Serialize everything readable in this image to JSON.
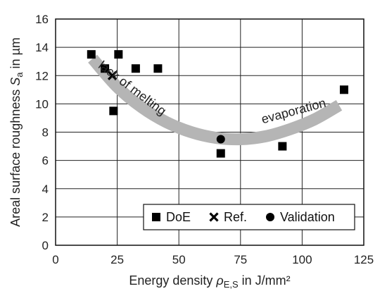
{
  "chart_data": {
    "type": "scatter",
    "xlabel_parts": {
      "prefix": "Energy density ",
      "symbol": "ρ",
      "sub": "E,S",
      "suffix": " in J/mm²"
    },
    "ylabel_parts": {
      "prefix": "Areal surface roughness ",
      "symbol": "S",
      "sub": "a",
      "suffix": " in µm"
    },
    "xlim": [
      0,
      125
    ],
    "ylim": [
      0,
      16
    ],
    "xticks": [
      0,
      25,
      50,
      75,
      100,
      125
    ],
    "yticks": [
      0,
      2,
      4,
      6,
      8,
      10,
      12,
      14,
      16
    ],
    "grid": true,
    "legend_position": "bottom-right",
    "series": [
      {
        "name": "DoE",
        "marker": "square",
        "points": [
          [
            14.5,
            13.5
          ],
          [
            20,
            12.5
          ],
          [
            23.5,
            9.5
          ],
          [
            25.5,
            13.5
          ],
          [
            32.5,
            12.5
          ],
          [
            41.5,
            12.5
          ],
          [
            67,
            6.5
          ],
          [
            92,
            7.0
          ],
          [
            117,
            11.0
          ]
        ]
      },
      {
        "name": "Ref.",
        "marker": "cross",
        "points": [
          [
            23,
            12.0
          ]
        ]
      },
      {
        "name": "Validation",
        "marker": "circle",
        "points": [
          [
            67,
            7.5
          ]
        ]
      }
    ],
    "trend_curve": {
      "color": "#b5b5b5",
      "points": [
        [
          15,
          13.2
        ],
        [
          25,
          11.2
        ],
        [
          35,
          9.75
        ],
        [
          45,
          8.7
        ],
        [
          55,
          8.0
        ],
        [
          65,
          7.6
        ],
        [
          75,
          7.5
        ],
        [
          85,
          7.7
        ],
        [
          95,
          8.2
        ],
        [
          105,
          8.9
        ],
        [
          115,
          9.9
        ]
      ]
    },
    "annotations": [
      {
        "text": "lack of melting",
        "x": 17,
        "y": 12.6
      },
      {
        "text": "evaporation",
        "x": 84,
        "y": 8.6
      }
    ]
  }
}
